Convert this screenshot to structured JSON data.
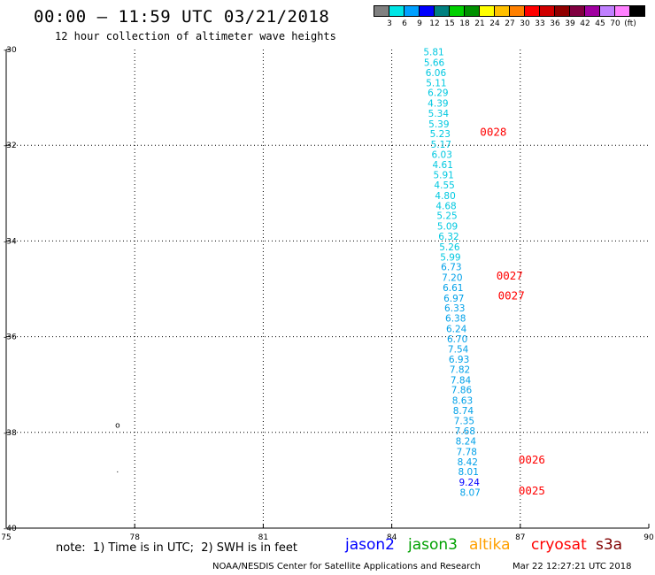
{
  "header": {
    "title": "00:00 – 11:59 UTC 03/21/2018",
    "subtitle": "12 hour collection of altimeter wave heights"
  },
  "color_scale": {
    "colors": [
      "#808080",
      "#00e5e5",
      "#00a0ff",
      "#0000ff",
      "#008080",
      "#00d000",
      "#009000",
      "#ffff00",
      "#ffc000",
      "#ff8000",
      "#ff0000",
      "#d00000",
      "#900000",
      "#800040",
      "#a000a0",
      "#c080ff",
      "#ff80ff",
      "#000000"
    ],
    "labels": [
      "3",
      "6",
      "9",
      "12",
      "15",
      "18",
      "21",
      "24",
      "27",
      "30",
      "33",
      "36",
      "39",
      "42",
      "45",
      "70",
      "(ft)"
    ]
  },
  "footer": {
    "note": "note:  1) Time is in UTC;  2) SWH is in feet",
    "satellites": [
      {
        "name": "jason2",
        "color": "#0000ff"
      },
      {
        "name": "jason3",
        "color": "#00a000"
      },
      {
        "name": "altika",
        "color": "#ffa000"
      },
      {
        "name": "cryosat",
        "color": "#ff0000"
      },
      {
        "name": "s3a",
        "color": "#800000"
      }
    ],
    "credit": "NOAA/NESDIS Center for Satellite Applications and Research",
    "timestamp": "Mar 22 12:27:21 UTC 2018"
  },
  "chart_data": {
    "type": "scatter",
    "xlim": [
      75,
      90
    ],
    "ylim": [
      -40,
      -30
    ],
    "x_ticks": [
      "75",
      "78",
      "81",
      "84",
      "87",
      "90"
    ],
    "y_ticks": [
      "-30",
      "-32",
      "-34",
      "-36",
      "-38",
      "-40"
    ],
    "grid": true,
    "points": [
      {
        "x": 84.98,
        "y": -30.05,
        "label": "5.81",
        "color": "#00c8e0"
      },
      {
        "x": 84.99,
        "y": -30.27,
        "label": "5.66",
        "color": "#00c8e0"
      },
      {
        "x": 85.03,
        "y": -30.48,
        "label": "6.06",
        "color": "#00c8e0"
      },
      {
        "x": 85.04,
        "y": -30.69,
        "label": "5.11",
        "color": "#00c8e0"
      },
      {
        "x": 85.08,
        "y": -30.9,
        "label": "6.29",
        "color": "#00c8e0"
      },
      {
        "x": 85.08,
        "y": -31.12,
        "label": "4.39",
        "color": "#00c8e0"
      },
      {
        "x": 85.09,
        "y": -31.33,
        "label": "5.34",
        "color": "#00c8e0"
      },
      {
        "x": 85.1,
        "y": -31.55,
        "label": "5.39",
        "color": "#00c8e0"
      },
      {
        "x": 85.13,
        "y": -31.76,
        "label": "5.23",
        "color": "#00c8e0"
      },
      {
        "x": 85.15,
        "y": -31.98,
        "label": "5.17",
        "color": "#00c8e0"
      },
      {
        "x": 85.17,
        "y": -32.19,
        "label": "6.03",
        "color": "#00c8e0"
      },
      {
        "x": 85.19,
        "y": -32.4,
        "label": "4.61",
        "color": "#00c8e0"
      },
      {
        "x": 85.21,
        "y": -32.62,
        "label": "5.91",
        "color": "#00c8e0"
      },
      {
        "x": 85.23,
        "y": -32.83,
        "label": "4.55",
        "color": "#00c8e0"
      },
      {
        "x": 85.25,
        "y": -33.05,
        "label": "4.80",
        "color": "#00c8e0"
      },
      {
        "x": 85.27,
        "y": -33.26,
        "label": "4.68",
        "color": "#00c8e0"
      },
      {
        "x": 85.29,
        "y": -33.47,
        "label": "5.25",
        "color": "#00c8e0"
      },
      {
        "x": 85.3,
        "y": -33.69,
        "label": "5.09",
        "color": "#00c8e0"
      },
      {
        "x": 85.33,
        "y": -33.9,
        "label": "6.32",
        "color": "#00c8e0"
      },
      {
        "x": 85.35,
        "y": -34.12,
        "label": "5.26",
        "color": "#00c8e0"
      },
      {
        "x": 85.37,
        "y": -34.33,
        "label": "5.99",
        "color": "#00c8e0"
      },
      {
        "x": 85.39,
        "y": -34.54,
        "label": "6.73",
        "color": "#00a0e8"
      },
      {
        "x": 85.41,
        "y": -34.76,
        "label": "7.20",
        "color": "#00a0e8"
      },
      {
        "x": 85.43,
        "y": -34.97,
        "label": "6.61",
        "color": "#00a0e8"
      },
      {
        "x": 85.45,
        "y": -35.19,
        "label": "6.97",
        "color": "#00a0e8"
      },
      {
        "x": 85.47,
        "y": -35.4,
        "label": "6.33",
        "color": "#00a0e8"
      },
      {
        "x": 85.49,
        "y": -35.61,
        "label": "6.38",
        "color": "#00a0e8"
      },
      {
        "x": 85.51,
        "y": -35.83,
        "label": "6.24",
        "color": "#00a0e8"
      },
      {
        "x": 85.53,
        "y": -36.04,
        "label": "6.70",
        "color": "#00a0e8"
      },
      {
        "x": 85.55,
        "y": -36.26,
        "label": "7.54",
        "color": "#00a0e8"
      },
      {
        "x": 85.57,
        "y": -36.47,
        "label": "6.93",
        "color": "#00a0e8"
      },
      {
        "x": 85.59,
        "y": -36.68,
        "label": "7.82",
        "color": "#00a0e8"
      },
      {
        "x": 85.61,
        "y": -36.9,
        "label": "7.84",
        "color": "#00a0e8"
      },
      {
        "x": 85.63,
        "y": -37.11,
        "label": "7.86",
        "color": "#00a0e8"
      },
      {
        "x": 85.65,
        "y": -37.33,
        "label": "8.63",
        "color": "#00a0e8"
      },
      {
        "x": 85.67,
        "y": -37.54,
        "label": "8.74",
        "color": "#00a0e8"
      },
      {
        "x": 85.69,
        "y": -37.75,
        "label": "7.35",
        "color": "#00a0e8"
      },
      {
        "x": 85.71,
        "y": -37.97,
        "label": "7.68",
        "color": "#00a0e8"
      },
      {
        "x": 85.73,
        "y": -38.18,
        "label": "8.24",
        "color": "#00a0e8"
      },
      {
        "x": 85.75,
        "y": -38.4,
        "label": "7.78",
        "color": "#00a0e8"
      },
      {
        "x": 85.77,
        "y": -38.61,
        "label": "8.42",
        "color": "#00a0e8"
      },
      {
        "x": 85.79,
        "y": -38.82,
        "label": "8.01",
        "color": "#00a0e8"
      },
      {
        "x": 85.81,
        "y": -39.04,
        "label": "9.24",
        "color": "#0000ff"
      },
      {
        "x": 85.83,
        "y": -39.25,
        "label": "8.07",
        "color": "#00a0e8"
      }
    ],
    "time_labels": [
      {
        "x": 86.06,
        "y": -31.73,
        "label": "0028",
        "color": "#ff0000"
      },
      {
        "x": 86.44,
        "y": -34.73,
        "label": "0027",
        "color": "#ff0000"
      },
      {
        "x": 86.48,
        "y": -35.15,
        "label": "0027",
        "color": "#ff0000"
      },
      {
        "x": 86.96,
        "y": -38.58,
        "label": "0026",
        "color": "#ff0000"
      },
      {
        "x": 86.96,
        "y": -39.22,
        "label": "0025",
        "color": "#ff0000"
      }
    ],
    "markers": [
      {
        "x": 77.6,
        "y": -37.85,
        "label": "o"
      },
      {
        "x": 77.6,
        "y": -38.78,
        "label": "."
      }
    ]
  }
}
